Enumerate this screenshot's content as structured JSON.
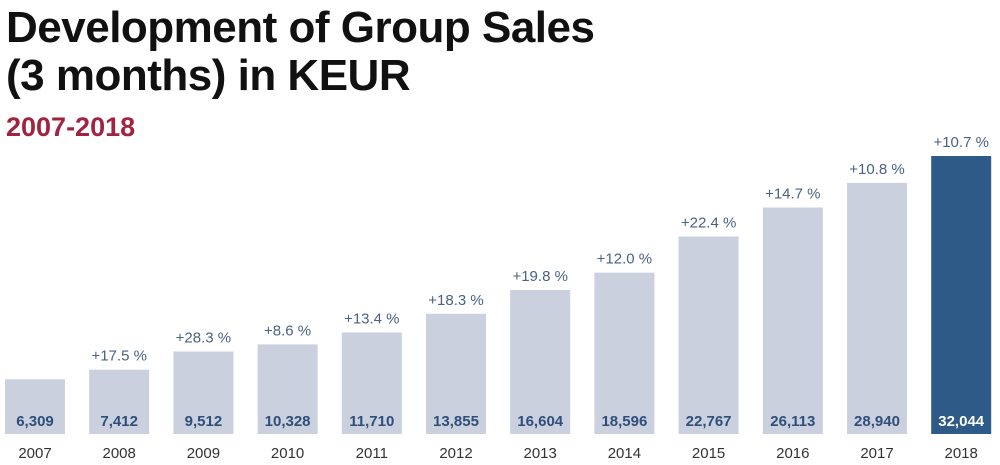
{
  "header": {
    "title_line1": "Development of Group Sales",
    "title_line2": "(3 months) in KEUR",
    "subtitle": "2007-2018"
  },
  "colors": {
    "title": "#111111",
    "subtitle": "#a0243f",
    "bar": "#cbd0de",
    "bar_highlight": "#2d5a86",
    "value_label": "#2d4f7a",
    "value_label_highlight": "#ffffff",
    "growth_label": "#4a6280",
    "year_label": "#333333"
  },
  "chart_data": {
    "type": "bar",
    "title": "Development of Group Sales (3 months) in KEUR",
    "subtitle": "2007-2018",
    "xlabel": "",
    "ylabel": "",
    "ylim": [
      0,
      32044
    ],
    "grid": false,
    "categories": [
      "2007",
      "2008",
      "2009",
      "2010",
      "2011",
      "2012",
      "2013",
      "2014",
      "2015",
      "2016",
      "2017",
      "2018"
    ],
    "values": [
      6309,
      7412,
      9512,
      10328,
      11710,
      13855,
      16604,
      18596,
      22767,
      26113,
      28940,
      32044
    ],
    "value_labels": [
      "6,309",
      "7,412",
      "9,512",
      "10,328",
      "11,710",
      "13,855",
      "16,604",
      "18,596",
      "22,767",
      "26,113",
      "28,940",
      "32,044"
    ],
    "growth_labels": [
      "",
      "+17.5 %",
      "+28.3 %",
      "+8.6 %",
      "+13.4 %",
      "+18.3 %",
      "+19.8 %",
      "+12.0 %",
      "+22.4 %",
      "+14.7 %",
      "+10.8 %",
      "+10.7 %"
    ],
    "highlight_index": 11
  }
}
